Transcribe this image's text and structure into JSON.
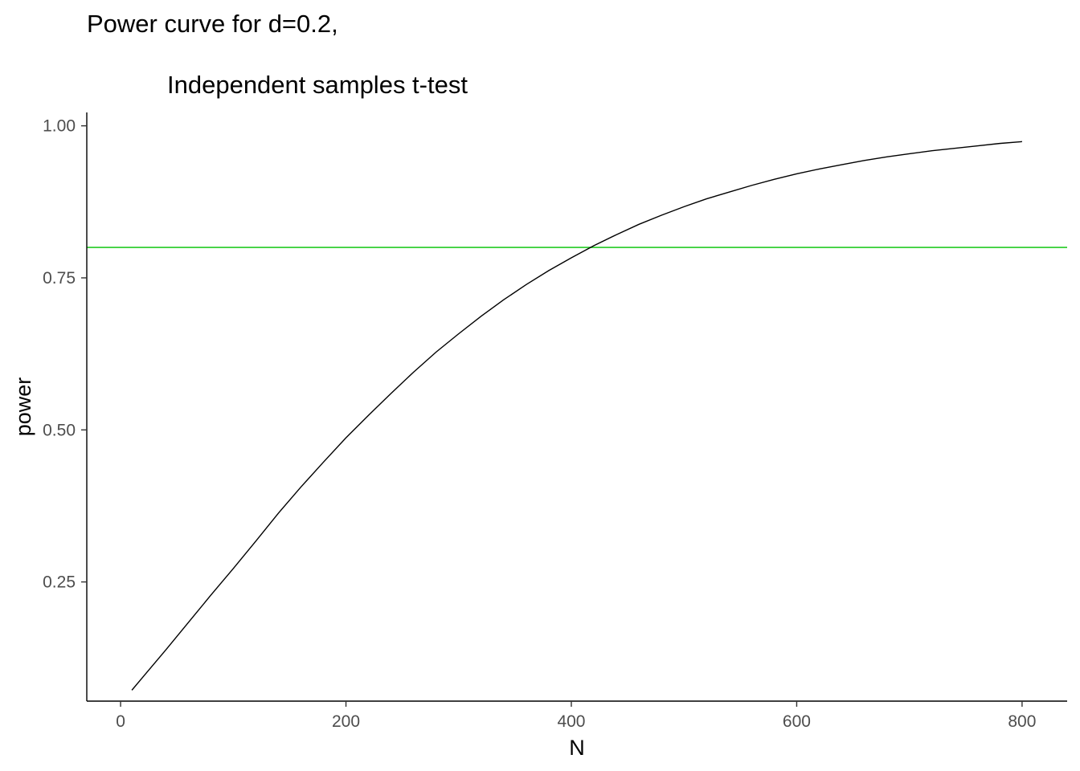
{
  "chart_data": {
    "type": "line",
    "title_line1": "Power curve for d=0.2,",
    "title_line2": "Independent samples t-test",
    "xlabel": "N",
    "ylabel": "power",
    "xlim": [
      -30,
      840
    ],
    "ylim": [
      0.054,
      1.022
    ],
    "x_ticks": [
      0,
      200,
      400,
      600,
      800
    ],
    "x_tick_labels": [
      "0",
      "200",
      "400",
      "600",
      "800"
    ],
    "y_ticks": [
      0.25,
      0.5,
      0.75,
      1.0
    ],
    "y_tick_labels": [
      "0.25",
      "0.50",
      "0.75",
      "1.00"
    ],
    "grid": false,
    "reference_line": {
      "y": 0.8,
      "color": "#22cc22"
    },
    "series": [
      {
        "color": "#000000",
        "x": [
          10,
          20,
          40,
          60,
          80,
          100,
          120,
          140,
          160,
          180,
          200,
          220,
          240,
          260,
          280,
          300,
          320,
          340,
          360,
          380,
          400,
          420,
          440,
          460,
          480,
          500,
          520,
          540,
          560,
          580,
          600,
          620,
          640,
          660,
          680,
          700,
          720,
          740,
          760,
          780,
          800
        ],
        "y": [
          0.072,
          0.094,
          0.138,
          0.183,
          0.228,
          0.272,
          0.317,
          0.363,
          0.406,
          0.447,
          0.487,
          0.524,
          0.56,
          0.595,
          0.628,
          0.658,
          0.687,
          0.714,
          0.739,
          0.762,
          0.783,
          0.803,
          0.821,
          0.838,
          0.853,
          0.867,
          0.88,
          0.891,
          0.902,
          0.912,
          0.921,
          0.929,
          0.936,
          0.943,
          0.949,
          0.954,
          0.959,
          0.963,
          0.967,
          0.971,
          0.974
        ]
      }
    ]
  }
}
